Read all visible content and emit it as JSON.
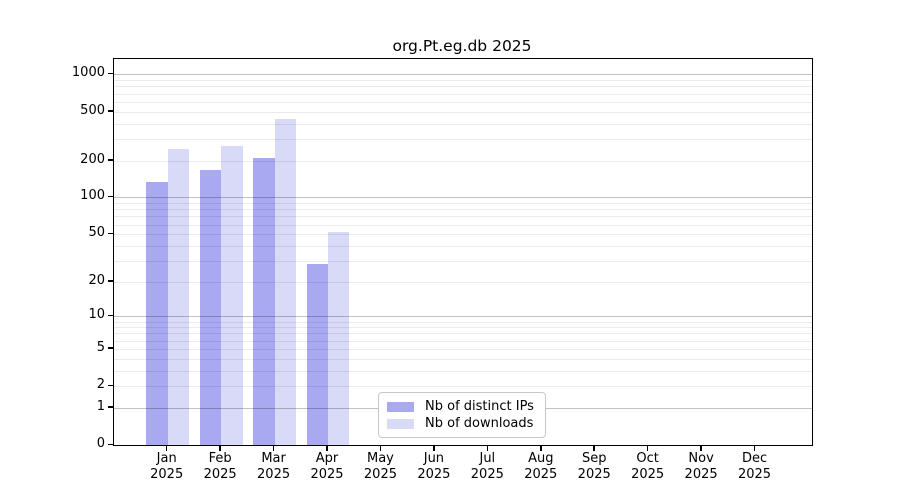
{
  "chart_data": {
    "type": "bar",
    "title": "org.Pt.eg.db 2025",
    "year_label": "2025",
    "months": [
      "Jan",
      "Feb",
      "Mar",
      "Apr",
      "May",
      "Jun",
      "Jul",
      "Aug",
      "Sep",
      "Oct",
      "Nov",
      "Dec"
    ],
    "series": [
      {
        "name": "Nb of distinct IPs",
        "color": "#a9a9f2",
        "values": [
          134,
          168,
          210,
          28,
          0,
          0,
          0,
          0,
          0,
          0,
          0,
          0
        ]
      },
      {
        "name": "Nb of downloads",
        "color": "#d9d9f8",
        "values": [
          249,
          263,
          435,
          52,
          0,
          0,
          0,
          0,
          0,
          0,
          0,
          0
        ]
      }
    ],
    "y_axis": {
      "scale": "log10(value+1)",
      "tick_values": [
        0,
        1,
        2,
        5,
        10,
        20,
        50,
        100,
        200,
        500,
        1000
      ]
    },
    "grid": {
      "major_values": [
        1,
        10,
        100,
        1000
      ],
      "minor_values": [
        2,
        3,
        4,
        5,
        6,
        7,
        8,
        9,
        20,
        30,
        40,
        50,
        60,
        70,
        80,
        90,
        200,
        300,
        400,
        500,
        600,
        700,
        800,
        900
      ]
    },
    "legend_position": "bottom-center"
  }
}
